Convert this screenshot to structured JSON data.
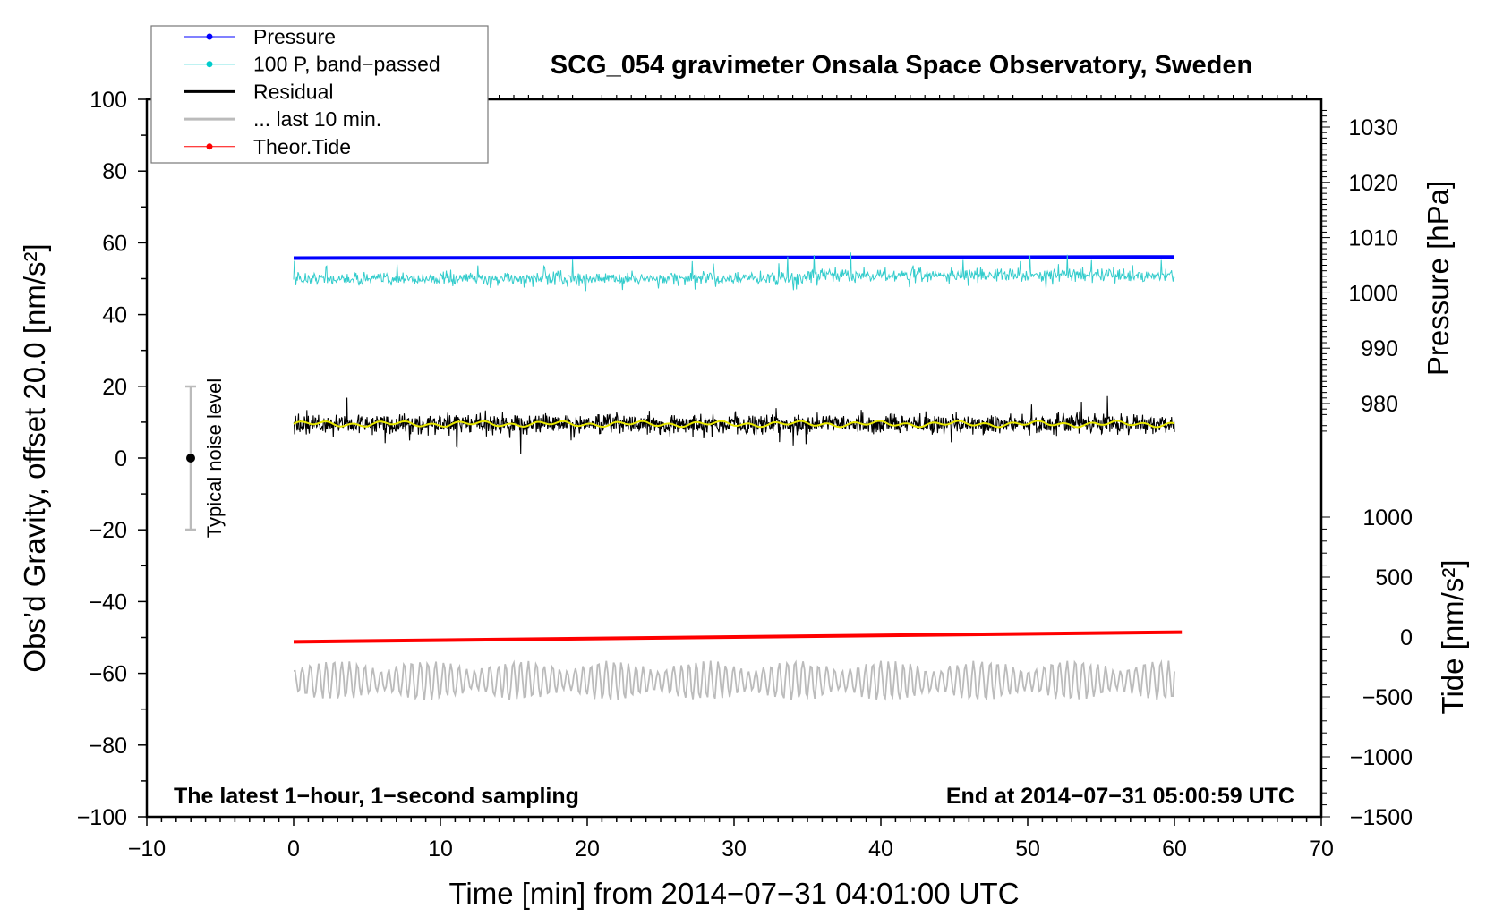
{
  "chart_data": {
    "type": "line",
    "title": "SCG_054 gravimeter Onsala Space Observatory, Sweden",
    "xlabel": "Time [min] from 2014−07−31 04:01:00 UTC",
    "ylabel_left": "Obs’d Gravity, offset 20.0 [nm/s²]",
    "ylabel_right_pressure": "Pressure [hPa]",
    "ylabel_right_tide": "Tide [nm/s²]",
    "xlim": [
      -10,
      70
    ],
    "ylim": [
      -100,
      100
    ],
    "pressure_lim_visible": [
      980,
      1030
    ],
    "tide_lim": [
      -1500,
      1000
    ],
    "x_ticks": [
      "−10",
      "0",
      "10",
      "20",
      "30",
      "40",
      "50",
      "60",
      "70"
    ],
    "y_ticks": [
      "100",
      "80",
      "60",
      "40",
      "20",
      "0",
      "−20",
      "−40",
      "−60",
      "−80",
      "−100"
    ],
    "pressure_ticks": [
      "1030",
      "1020",
      "1010",
      "1000",
      "990",
      "980"
    ],
    "tide_ticks": [
      "1000",
      "500",
      "0",
      "−500",
      "−1000",
      "−1500"
    ],
    "annotation_left": "The latest 1−hour, 1−second sampling",
    "annotation_right": "End at 2014−07−31 05:00:59 UTC",
    "noise_label": "Typical noise level",
    "noise_bar": {
      "center": 0,
      "low": -20,
      "high": 20
    },
    "legend": {
      "placement": "top-left",
      "entries": [
        {
          "label": "Pressure",
          "color": "#0000ff",
          "marker": "dot"
        },
        {
          "label": "100 P, band−passed",
          "color": "#00cccc",
          "marker": "dot"
        },
        {
          "label": "Residual",
          "color": "#000000",
          "marker": "none"
        },
        {
          "label": "... last 10 min.",
          "color": "#bbbbbb",
          "marker": "none"
        },
        {
          "label": "Theor.Tide",
          "color": "#ff0000",
          "marker": "dot"
        }
      ]
    },
    "series": [
      {
        "name": "Pressure",
        "axis": "pressure_hPa",
        "x": [
          0,
          60
        ],
        "values": [
          1006.3,
          1006.5
        ]
      },
      {
        "name": "100 P, band-passed",
        "axis": "gravity",
        "x_range": [
          0,
          60
        ],
        "mean": 50,
        "amplitude": 6
      },
      {
        "name": "Residual",
        "axis": "gravity",
        "x_range": [
          0,
          60
        ],
        "mean": 9.5,
        "amplitude": 8
      },
      {
        "name": "Residual smoothed",
        "axis": "gravity",
        "color": "#e8e800",
        "x_range": [
          0,
          60
        ],
        "mean": 9.5
      },
      {
        "name": "... last 10 min.",
        "axis": "gravity",
        "x_range": [
          0,
          60
        ],
        "mean": -62,
        "amplitude": 5
      },
      {
        "name": "Theor.Tide",
        "axis": "tide",
        "x": [
          0,
          60.5
        ],
        "values": [
          -40,
          40
        ]
      }
    ]
  }
}
